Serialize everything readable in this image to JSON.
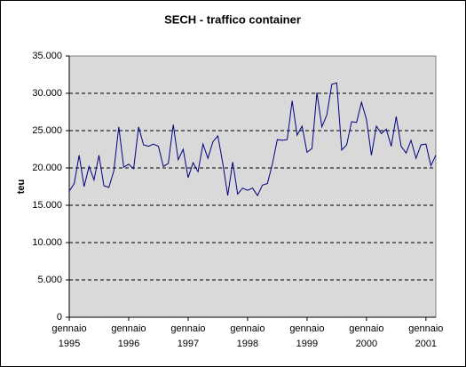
{
  "chart_data": {
    "type": "line",
    "title": "SECH - traffico container",
    "y_label": "teu",
    "categories": [
      "gennaio 1995",
      null,
      null,
      null,
      null,
      null,
      null,
      null,
      null,
      null,
      null,
      null,
      "gennaio 1996",
      null,
      null,
      null,
      null,
      null,
      null,
      null,
      null,
      null,
      null,
      null,
      "gennaio 1997",
      null,
      null,
      null,
      null,
      null,
      null,
      null,
      null,
      null,
      null,
      null,
      "gennaio 1998",
      null,
      null,
      null,
      null,
      null,
      null,
      null,
      null,
      null,
      null,
      null,
      "gennaio 1999",
      null,
      null,
      null,
      null,
      null,
      null,
      null,
      null,
      null,
      null,
      null,
      "gennaio 2000",
      null,
      null,
      null,
      null,
      null,
      null,
      null,
      null,
      null,
      null,
      null,
      "gennaio 2001",
      null,
      null
    ],
    "series": [
      {
        "name": "teu",
        "color": "#000080",
        "values": [
          16900,
          17900,
          21700,
          17500,
          20200,
          18400,
          21700,
          17600,
          17400,
          19600,
          25500,
          20100,
          20500,
          19900,
          25500,
          23100,
          22900,
          23200,
          22900,
          20200,
          20600,
          25800,
          21100,
          22500,
          18700,
          20700,
          19500,
          23200,
          21300,
          23500,
          24300,
          20600,
          16300,
          20800,
          16500,
          17300,
          17000,
          17300,
          16300,
          17700,
          17900,
          20500,
          23800,
          23700,
          23800,
          29000,
          24400,
          25600,
          22100,
          22600,
          30100,
          25500,
          27100,
          31200,
          31400,
          22400,
          23100,
          26200,
          26100,
          28800,
          26500,
          21700,
          25600,
          24600,
          25200,
          22900,
          26900,
          22900,
          22000,
          23700,
          21300,
          23100,
          23200,
          20300,
          21700
        ]
      }
    ],
    "ylim": [
      0,
      35000
    ],
    "yticks": [
      0,
      {
        "value": 5000,
        "label": "5.000"
      },
      {
        "value": 10000,
        "label": "10.000"
      },
      {
        "value": 15000,
        "label": "15.000"
      },
      {
        "value": 20000,
        "label": "20.000"
      },
      {
        "value": 25000,
        "label": "25.000"
      },
      {
        "value": 30000,
        "label": "30.000"
      },
      {
        "value": 35000,
        "label": "35.000"
      }
    ],
    "grid": true
  }
}
